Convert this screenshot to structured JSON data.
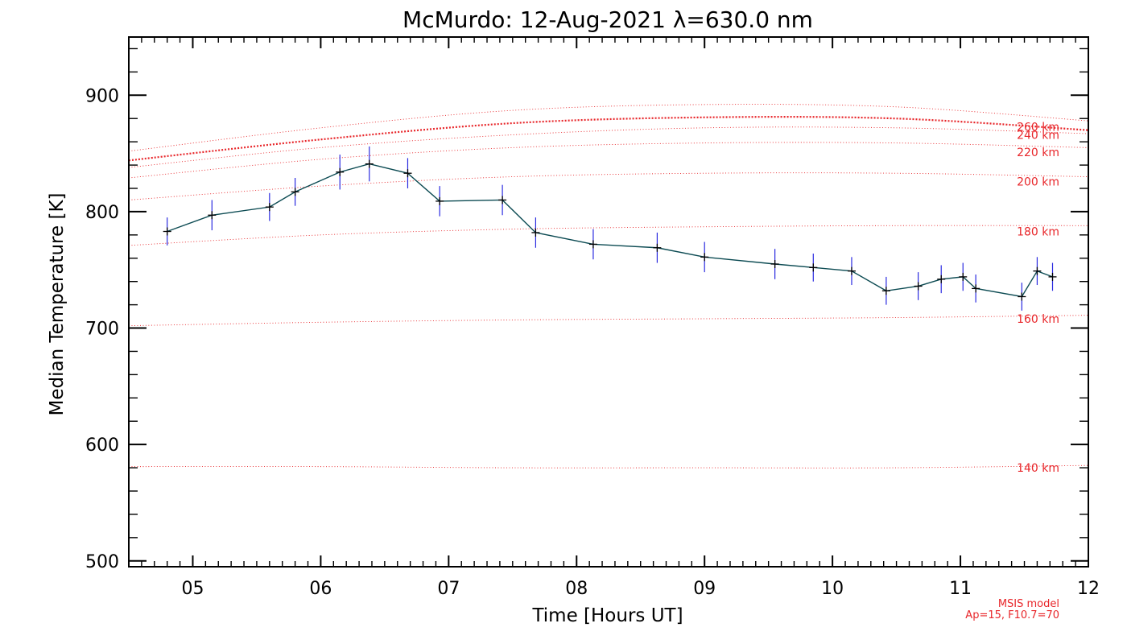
{
  "chart_data": {
    "type": "line",
    "title": "McMurdo: 12-Aug-2021 λ=630.0 nm",
    "xlabel": "Time [Hours UT]",
    "ylabel": "Median Temperature [K]",
    "xlim": [
      4.5,
      12
    ],
    "ylim": [
      495,
      950
    ],
    "x_ticks": [
      5,
      6,
      7,
      8,
      9,
      10,
      11,
      12
    ],
    "x_tick_labels": [
      "05",
      "06",
      "07",
      "08",
      "09",
      "10",
      "11",
      "12"
    ],
    "y_ticks": [
      500,
      600,
      700,
      800,
      900
    ],
    "y_tick_labels": [
      "500",
      "600",
      "700",
      "800",
      "900"
    ],
    "series": [
      {
        "name": "Median temperature",
        "x": [
          4.8,
          5.15,
          5.6,
          5.8,
          6.15,
          6.38,
          6.68,
          6.93,
          7.42,
          7.68,
          8.13,
          8.63,
          9.0,
          9.55,
          9.85,
          10.15,
          10.42,
          10.67,
          10.85,
          11.02,
          11.12,
          11.48,
          11.6,
          11.72
        ],
        "y": [
          783,
          797,
          804,
          817,
          834,
          841,
          833,
          809,
          810,
          782,
          772,
          769,
          761,
          755,
          752,
          749,
          732,
          736,
          742,
          744,
          734,
          727,
          749,
          744
        ],
        "errors": [
          12,
          13,
          12,
          12,
          15,
          15,
          13,
          13,
          13,
          13,
          13,
          13,
          13,
          13,
          12,
          12,
          12,
          12,
          12,
          12,
          12,
          12,
          12,
          12
        ],
        "color": "#0b4a52",
        "error_color": "#2a2ae0"
      }
    ],
    "model_curves": [
      {
        "label": "140 km",
        "x": [
          4.5,
          6,
          7.5,
          9,
          10.5,
          12
        ],
        "y": [
          581,
          581,
          580,
          580,
          580,
          582
        ],
        "style": "thin"
      },
      {
        "label": "160 km",
        "x": [
          4.5,
          6,
          7.5,
          9,
          10.5,
          12
        ],
        "y": [
          702,
          705,
          707,
          708,
          709,
          711
        ],
        "style": "thin"
      },
      {
        "label": "180 km",
        "x": [
          4.5,
          6,
          7.5,
          9,
          10.5,
          12
        ],
        "y": [
          771,
          780,
          785,
          787,
          788,
          788
        ],
        "style": "thin"
      },
      {
        "label": "200 km",
        "x": [
          4.5,
          6,
          7.5,
          9,
          10.5,
          12
        ],
        "y": [
          810,
          822,
          830,
          833,
          833,
          830
        ],
        "style": "thin"
      },
      {
        "label": "220 km",
        "x": [
          4.5,
          6,
          7.5,
          9,
          10.5,
          12
        ],
        "y": [
          829,
          845,
          855,
          859,
          859,
          855
        ],
        "style": "thin"
      },
      {
        "label": "240 km",
        "x": [
          4.5,
          6,
          7.5,
          9,
          10.5,
          12
        ],
        "y": [
          838,
          855,
          866,
          872,
          872,
          867
        ],
        "style": "thin"
      },
      {
        "label": "250 km",
        "x": [
          4.5,
          6,
          7.5,
          9,
          10.5,
          12
        ],
        "y": [
          844,
          862,
          876,
          881,
          880,
          870
        ],
        "style": "thick"
      },
      {
        "label": "260 km",
        "x": [
          4.5,
          6,
          7.5,
          9,
          10.5,
          12
        ],
        "y": [
          852,
          872,
          887,
          892,
          890,
          878
        ],
        "style": "thin"
      }
    ],
    "model_labels": [
      "260 km",
      "240 km",
      "220 km",
      "200 km",
      "180 km",
      "160 km",
      "140 km"
    ],
    "model_label_y": [
      873,
      866,
      851,
      826,
      783,
      708,
      580
    ],
    "model_note": [
      "MSIS model",
      "Ap=15, F10.7=70"
    ],
    "model_color": "#e8262a",
    "grid": false,
    "legend": "none"
  }
}
